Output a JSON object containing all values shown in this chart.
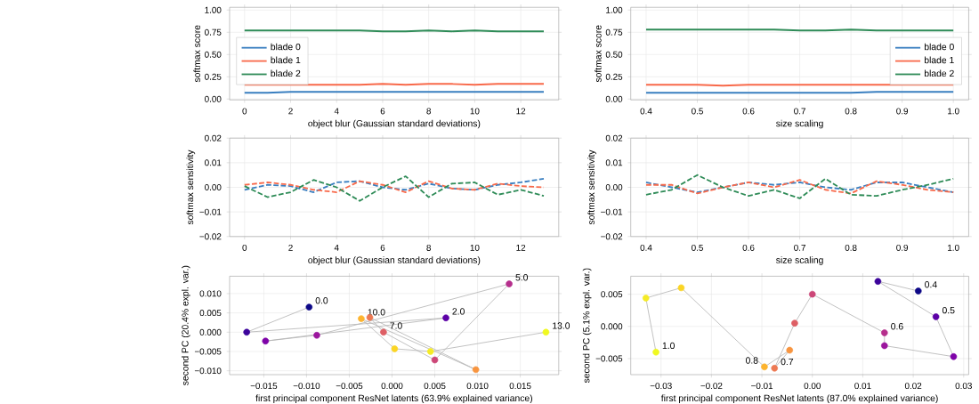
{
  "chart_data": [
    {
      "type": "line",
      "xlabel": "object blur (Gaussian standard deviations)",
      "ylabel": "softmax score",
      "x": [
        0,
        1,
        2,
        3,
        4,
        5,
        6,
        7,
        8,
        9,
        10,
        11,
        12,
        13
      ],
      "xlim": [
        -0.65,
        13.65
      ],
      "xticks": [
        0,
        2,
        4,
        6,
        8,
        10,
        12
      ],
      "ylim": [
        -0.01,
        1.03
      ],
      "yticks": [
        {
          "value": 0,
          "label": "0.00"
        },
        {
          "value": 0.25,
          "label": "0.25"
        },
        {
          "value": 0.5,
          "label": "0.50"
        },
        {
          "value": 0.75,
          "label": "0.75"
        },
        {
          "value": 1,
          "label": "1.00"
        }
      ],
      "grid": true,
      "legend": "left",
      "line_style": "solid",
      "series": [
        {
          "name": "blade 0",
          "color": "#3a7fc0",
          "values": [
            0.07,
            0.07,
            0.08,
            0.08,
            0.08,
            0.08,
            0.08,
            0.08,
            0.08,
            0.08,
            0.08,
            0.08,
            0.08,
            0.08
          ]
        },
        {
          "name": "blade 1",
          "color": "#f8694a",
          "values": [
            0.16,
            0.16,
            0.16,
            0.16,
            0.16,
            0.16,
            0.17,
            0.16,
            0.17,
            0.17,
            0.16,
            0.17,
            0.17,
            0.17
          ]
        },
        {
          "name": "blade 2",
          "color": "#2e8b57",
          "values": [
            0.77,
            0.77,
            0.77,
            0.77,
            0.77,
            0.77,
            0.76,
            0.76,
            0.77,
            0.76,
            0.77,
            0.76,
            0.76,
            0.76
          ]
        }
      ]
    },
    {
      "type": "line",
      "xlabel": "size scaling",
      "ylabel": "softmax score",
      "x": [
        0.4,
        0.45,
        0.5,
        0.55,
        0.6,
        0.65,
        0.7,
        0.75,
        0.8,
        0.85,
        0.9,
        0.95,
        1.0
      ],
      "xlim": [
        0.37,
        1.03
      ],
      "xticks": [
        0.4,
        0.5,
        0.6,
        0.7,
        0.8,
        0.9,
        {
          "value": 1,
          "label": "1.0"
        }
      ],
      "ylim": [
        -0.01,
        1.03
      ],
      "yticks": [
        {
          "value": 0,
          "label": "0.00"
        },
        {
          "value": 0.25,
          "label": "0.25"
        },
        {
          "value": 0.5,
          "label": "0.50"
        },
        {
          "value": 0.75,
          "label": "0.75"
        },
        {
          "value": 1,
          "label": "1.00"
        }
      ],
      "grid": true,
      "legend": "right",
      "line_style": "solid",
      "series": [
        {
          "name": "blade 0",
          "color": "#3a7fc0",
          "values": [
            0.07,
            0.07,
            0.07,
            0.07,
            0.07,
            0.07,
            0.07,
            0.07,
            0.07,
            0.08,
            0.08,
            0.08,
            0.08
          ]
        },
        {
          "name": "blade 1",
          "color": "#f8694a",
          "values": [
            0.16,
            0.16,
            0.16,
            0.15,
            0.16,
            0.16,
            0.16,
            0.16,
            0.16,
            0.16,
            0.16,
            0.16,
            0.16
          ]
        },
        {
          "name": "blade 2",
          "color": "#2e8b57",
          "values": [
            0.78,
            0.78,
            0.78,
            0.78,
            0.78,
            0.78,
            0.77,
            0.77,
            0.78,
            0.77,
            0.77,
            0.77,
            0.77
          ]
        }
      ]
    },
    {
      "type": "line",
      "xlabel": "object blur (Gaussian standard deviations)",
      "ylabel": "softmax sensitivity",
      "x": [
        0,
        1,
        2,
        3,
        4,
        5,
        6,
        7,
        8,
        9,
        10,
        11,
        12,
        13
      ],
      "xlim": [
        -0.65,
        13.65
      ],
      "xticks": [
        0,
        2,
        4,
        6,
        8,
        10,
        12
      ],
      "ylim": [
        -0.02,
        0.02
      ],
      "yticks": [
        {
          "value": -0.02,
          "label": "−0.02"
        },
        {
          "value": -0.01,
          "label": "−0.01"
        },
        {
          "value": 0,
          "label": "0.00"
        },
        {
          "value": 0.01,
          "label": "0.01"
        },
        {
          "value": 0.02,
          "label": "0.02"
        }
      ],
      "grid": true,
      "line_style": "dashed",
      "series": [
        {
          "color": "#3a7fc0",
          "values": [
            -0.001,
            0.001,
            0.0005,
            -0.002,
            0.002,
            0.0025,
            0.0,
            -0.001,
            0.0015,
            -0.0005,
            -0.001,
            0.001,
            0.002,
            0.0035
          ]
        },
        {
          "color": "#f8694a",
          "values": [
            0.001,
            0.002,
            0.001,
            -0.001,
            -0.002,
            0.0025,
            0.001,
            -0.002,
            0.0025,
            -0.0005,
            -0.001,
            0.0015,
            0.0005,
            0.0
          ]
        },
        {
          "color": "#2e8b57",
          "values": [
            0.0005,
            -0.004,
            -0.002,
            0.003,
            0.0,
            -0.0055,
            0.0,
            0.0045,
            -0.004,
            0.0015,
            0.002,
            -0.003,
            -0.001,
            -0.0035
          ]
        }
      ]
    },
    {
      "type": "line",
      "xlabel": "size scaling",
      "ylabel": "softmax sensitivity",
      "x": [
        0.4,
        0.45,
        0.5,
        0.55,
        0.6,
        0.65,
        0.7,
        0.75,
        0.8,
        0.85,
        0.9,
        0.95,
        1.0
      ],
      "xlim": [
        0.37,
        1.03
      ],
      "xticks": [
        0.4,
        0.5,
        0.6,
        0.7,
        0.8,
        0.9,
        {
          "value": 1,
          "label": "1.0"
        }
      ],
      "ylim": [
        -0.02,
        0.02
      ],
      "yticks": [
        {
          "value": -0.02,
          "label": "−0.02"
        },
        {
          "value": -0.01,
          "label": "−0.01"
        },
        {
          "value": 0,
          "label": "0.00"
        },
        {
          "value": 0.01,
          "label": "0.01"
        },
        {
          "value": 0.02,
          "label": "0.02"
        }
      ],
      "grid": true,
      "line_style": "dashed",
      "series": [
        {
          "color": "#3a7fc0",
          "values": [
            0.002,
            0.0,
            -0.002,
            0.0,
            0.002,
            0.001,
            0.002,
            0.0,
            -0.001,
            0.002,
            0.002,
            0.0,
            -0.002
          ]
        },
        {
          "color": "#f8694a",
          "values": [
            0.001,
            0.001,
            -0.0025,
            0.0,
            0.002,
            0.0,
            0.003,
            -0.001,
            -0.0025,
            0.0025,
            0.001,
            -0.001,
            -0.002
          ]
        },
        {
          "color": "#2e8b57",
          "values": [
            -0.003,
            -0.001,
            0.005,
            0.0,
            -0.0035,
            -0.001,
            -0.0045,
            0.0035,
            -0.003,
            -0.0035,
            -0.001,
            0.001,
            0.0035
          ]
        }
      ]
    },
    {
      "type": "scatter",
      "xlabel": "first principal component ResNet latents (63.9% explained variance)",
      "ylabel": "second PC (20.4% expl. var.)",
      "xlim": [
        -0.019,
        0.0195
      ],
      "xticks": [
        {
          "value": -0.015,
          "label": "−0.015"
        },
        {
          "value": -0.01,
          "label": "−0.010"
        },
        {
          "value": -0.005,
          "label": "−0.005"
        },
        {
          "value": 0,
          "label": "0.000"
        },
        {
          "value": 0.005,
          "label": "0.005"
        },
        {
          "value": 0.01,
          "label": "0.010"
        },
        {
          "value": 0.015,
          "label": "0.015"
        }
      ],
      "ylim": [
        -0.011,
        0.0145
      ],
      "yticks": [
        {
          "value": -0.01,
          "label": "−0.010"
        },
        {
          "value": -0.005,
          "label": "−0.005"
        },
        {
          "value": 0,
          "label": "0.000"
        },
        {
          "value": 0.005,
          "label": "0.005"
        },
        {
          "value": 0.01,
          "label": "0.010"
        }
      ],
      "grid": true,
      "series": [
        {
          "type": "line",
          "marker": "none",
          "color": "#b4b4b4",
          "x": [
            -0.0097,
            -0.017,
            0.0063,
            -0.0148,
            -0.0088,
            0.0137,
            0.005,
            -0.001,
            -0.0026,
            0.0098,
            -0.0036,
            0.0003,
            0.0045,
            0.018
          ],
          "values": [
            0.0065,
            0.0,
            0.0037,
            -0.0023,
            -0.0008,
            0.0125,
            -0.0072,
            0.0,
            0.0038,
            -0.0097,
            0.0035,
            -0.0043,
            -0.005,
            0.0
          ]
        },
        {
          "type": "scatter",
          "marker": "circle",
          "x": [
            -0.0097,
            -0.017,
            0.0063,
            -0.0148,
            -0.0088,
            0.0137,
            0.005,
            -0.001,
            -0.0026,
            0.0098,
            -0.0036,
            0.0003,
            0.0045,
            0.018
          ],
          "values": [
            0.0065,
            0.0,
            0.0037,
            -0.0023,
            -0.0008,
            0.0125,
            -0.0072,
            0.0,
            0.0038,
            -0.0097,
            0.0035,
            -0.0043,
            -0.005,
            0.0
          ],
          "colors": [
            "#0d0887",
            "#3c049b",
            "#5c01a6",
            "#7e03a8",
            "#9c179e",
            "#b52f8c",
            "#cc4778",
            "#de5f65",
            "#ed7953",
            "#f89540",
            "#fdb42f",
            "#fbd524",
            "#f5eb27",
            "#f0f921"
          ]
        }
      ],
      "annotations": [
        {
          "text": "0.0",
          "x": -0.0097,
          "y": 0.0065
        },
        {
          "text": "2.0",
          "x": 0.0063,
          "y": 0.0037
        },
        {
          "text": "5.0",
          "x": 0.0137,
          "y": 0.0125
        },
        {
          "text": "7.0",
          "x": -0.001,
          "y": 0.0
        },
        {
          "text": "10.0",
          "x": -0.0036,
          "y": 0.0035
        },
        {
          "text": "13.0",
          "x": 0.018,
          "y": 0.0
        }
      ]
    },
    {
      "type": "scatter",
      "xlabel": "first principal component ResNet latents (87.0% explained variance)",
      "ylabel": "second PC (5.1% expl. var.)",
      "xlim": [
        -0.036,
        0.031
      ],
      "xticks": [
        {
          "value": -0.03,
          "label": "−0.03"
        },
        {
          "value": -0.02,
          "label": "−0.02"
        },
        {
          "value": -0.01,
          "label": "−0.01"
        },
        {
          "value": 0,
          "label": "0.00"
        },
        {
          "value": 0.01,
          "label": "0.01"
        },
        {
          "value": 0.02,
          "label": "0.02"
        },
        {
          "value": 0.03,
          "label": "0.03"
        }
      ],
      "ylim": [
        -0.0075,
        0.0078
      ],
      "yticks": [
        {
          "value": -0.005,
          "label": "−0.005"
        },
        {
          "value": 0,
          "label": "0.000"
        },
        {
          "value": 0.005,
          "label": "0.005"
        }
      ],
      "grid": true,
      "series": [
        {
          "type": "line",
          "marker": "none",
          "color": "#b4b4b4",
          "x": [
            0.021,
            0.013,
            0.0245,
            0.028,
            0.0143,
            0.0143,
            0.0,
            -0.0035,
            -0.0075,
            -0.0045,
            -0.0095,
            -0.026,
            -0.033,
            -0.031
          ],
          "values": [
            0.0055,
            0.007,
            0.0015,
            -0.0047,
            -0.003,
            -0.001,
            0.005,
            0.0005,
            -0.0065,
            -0.0037,
            -0.0063,
            0.006,
            0.0044,
            -0.004
          ]
        },
        {
          "type": "scatter",
          "marker": "circle",
          "x": [
            0.021,
            0.013,
            0.0245,
            0.028,
            0.0143,
            0.0143,
            0.0,
            -0.0035,
            -0.0075,
            -0.0045,
            -0.0095,
            -0.026,
            -0.033,
            -0.031
          ],
          "values": [
            0.0055,
            0.007,
            0.0015,
            -0.0047,
            -0.003,
            -0.001,
            0.005,
            0.0005,
            -0.0065,
            -0.0037,
            -0.0063,
            0.006,
            0.0044,
            -0.004
          ],
          "colors": [
            "#0d0887",
            "#3c049b",
            "#5c01a6",
            "#7e03a8",
            "#9c179e",
            "#b52f8c",
            "#cc4778",
            "#de5f65",
            "#ed7953",
            "#f89540",
            "#fdb42f",
            "#fbd524",
            "#f5eb27",
            "#f0f921"
          ]
        }
      ],
      "annotations": [
        {
          "text": "0.4",
          "x": 0.021,
          "y": 0.0055
        },
        {
          "text": "0.5",
          "x": 0.0245,
          "y": 0.0015
        },
        {
          "text": "0.6",
          "x": 0.0143,
          "y": -0.001
        },
        {
          "text": "0.8",
          "x": -0.0095,
          "y": -0.0063
        },
        {
          "text": "0.7",
          "x": -0.0075,
          "y": -0.0065
        },
        {
          "text": "1.0",
          "x": -0.031,
          "y": -0.004
        }
      ]
    }
  ]
}
